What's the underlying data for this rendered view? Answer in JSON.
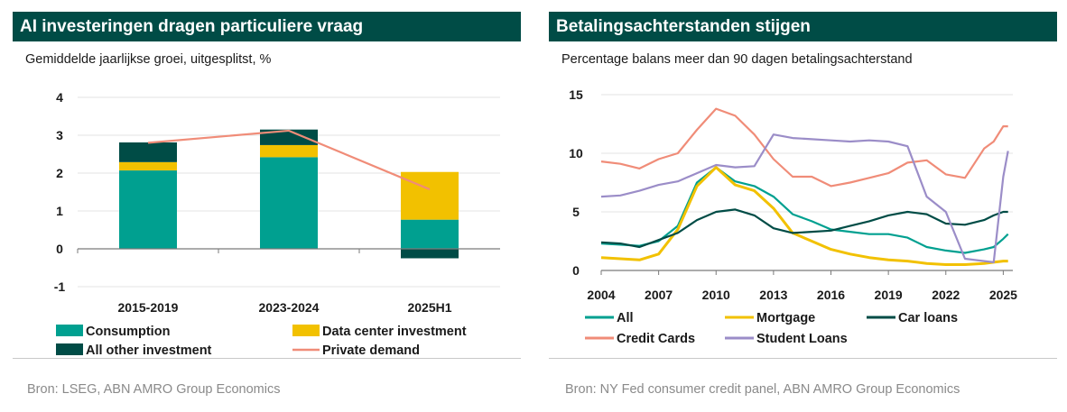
{
  "left": {
    "title": "AI investeringen dragen particuliere vraag",
    "subtitle": "Gemiddelde jaarlijkse groei, uitgesplitst, %",
    "source": "Bron: LSEG, ABN AMRO Group Economics"
  },
  "right": {
    "title": "Betalingsachterstanden stijgen",
    "subtitle": "Percentage balans meer dan 90 dagen betalingsachterstand",
    "source": "Bron: NY Fed consumer credit panel, ABN AMRO Group Economics"
  },
  "chart_data": [
    {
      "type": "bar",
      "stacked": true,
      "title": "AI investeringen dragen particuliere vraag",
      "subtitle": "Gemiddelde jaarlijkse groei, uitgesplitst, %",
      "categories": [
        "2015-2019",
        "2023-2024",
        "2025H1"
      ],
      "ylim": [
        -1,
        4
      ],
      "yticks": [
        "4",
        "3",
        "2",
        "1",
        "0",
        "-1"
      ],
      "yticks_values": [
        4,
        3,
        2,
        1,
        0,
        -1
      ],
      "series": [
        {
          "name": "Consumption",
          "color": "#00a090",
          "values": [
            2.07,
            2.42,
            0.77
          ]
        },
        {
          "name": "Data center investment",
          "color": "#f2c100",
          "values": [
            0.22,
            0.32,
            1.26
          ]
        },
        {
          "name": "All other investment",
          "color": "#004c46",
          "values": [
            0.52,
            0.41,
            -0.25
          ]
        }
      ],
      "line_series": {
        "name": "Private demand",
        "color": "#f08c78",
        "values": [
          2.8,
          3.12,
          1.57
        ]
      },
      "legend_position": "bottom"
    },
    {
      "type": "line",
      "title": "Betalingsachterstanden stijgen",
      "subtitle": "Percentage balans meer dan 90 dagen betalingsachterstand",
      "xlim": [
        2004,
        2025.5
      ],
      "ylim": [
        0,
        15
      ],
      "xticks": [
        "2004",
        "2007",
        "2010",
        "2013",
        "2016",
        "2019",
        "2022",
        "2025"
      ],
      "xticks_values": [
        2004,
        2007,
        2010,
        2013,
        2016,
        2019,
        2022,
        2025
      ],
      "yticks": [
        "15",
        "10",
        "5",
        "0"
      ],
      "yticks_values": [
        15,
        10,
        5,
        0
      ],
      "x": [
        2004,
        2005,
        2006,
        2007,
        2008,
        2009,
        2010,
        2011,
        2012,
        2013,
        2014,
        2015,
        2016,
        2017,
        2018,
        2019,
        2020,
        2021,
        2022,
        2023,
        2024,
        2024.5,
        2025,
        2025.25
      ],
      "series": [
        {
          "name": "All",
          "color": "#00a090",
          "values": [
            2.3,
            2.2,
            2.1,
            2.5,
            3.8,
            7.5,
            8.8,
            7.6,
            7.2,
            6.3,
            4.8,
            4.2,
            3.5,
            3.3,
            3.1,
            3.1,
            2.8,
            2.0,
            1.7,
            1.5,
            1.8,
            2.0,
            2.7,
            3.1
          ]
        },
        {
          "name": "Mortgage",
          "color": "#f2c100",
          "values": [
            1.1,
            1.0,
            0.9,
            1.4,
            3.5,
            7.2,
            8.8,
            7.3,
            6.8,
            5.3,
            3.2,
            2.5,
            1.8,
            1.4,
            1.1,
            0.9,
            0.8,
            0.6,
            0.5,
            0.5,
            0.6,
            0.7,
            0.8,
            0.8
          ]
        },
        {
          "name": "Car loans",
          "color": "#004c46",
          "values": [
            2.4,
            2.3,
            2.0,
            2.6,
            3.2,
            4.3,
            5.0,
            5.2,
            4.7,
            3.6,
            3.2,
            3.3,
            3.4,
            3.8,
            4.2,
            4.7,
            5.0,
            4.8,
            4.0,
            3.9,
            4.3,
            4.7,
            5.0,
            5.0
          ]
        },
        {
          "name": "Credit Cards",
          "color": "#f08c78",
          "values": [
            9.3,
            9.1,
            8.7,
            9.5,
            10.0,
            12.0,
            13.8,
            13.2,
            11.6,
            9.5,
            8.0,
            8.0,
            7.2,
            7.5,
            7.9,
            8.3,
            9.2,
            9.4,
            8.2,
            7.9,
            10.4,
            11.0,
            12.3,
            12.3
          ]
        },
        {
          "name": "Student Loans",
          "color": "#9b8dc8",
          "values": [
            6.3,
            6.4,
            6.8,
            7.3,
            7.6,
            8.3,
            9.0,
            8.8,
            8.9,
            11.6,
            11.3,
            11.2,
            11.1,
            11.0,
            11.1,
            11.0,
            10.6,
            6.3,
            5.0,
            1.0,
            0.8,
            0.7,
            8.0,
            10.2
          ]
        }
      ],
      "legend_position": "bottom"
    }
  ]
}
